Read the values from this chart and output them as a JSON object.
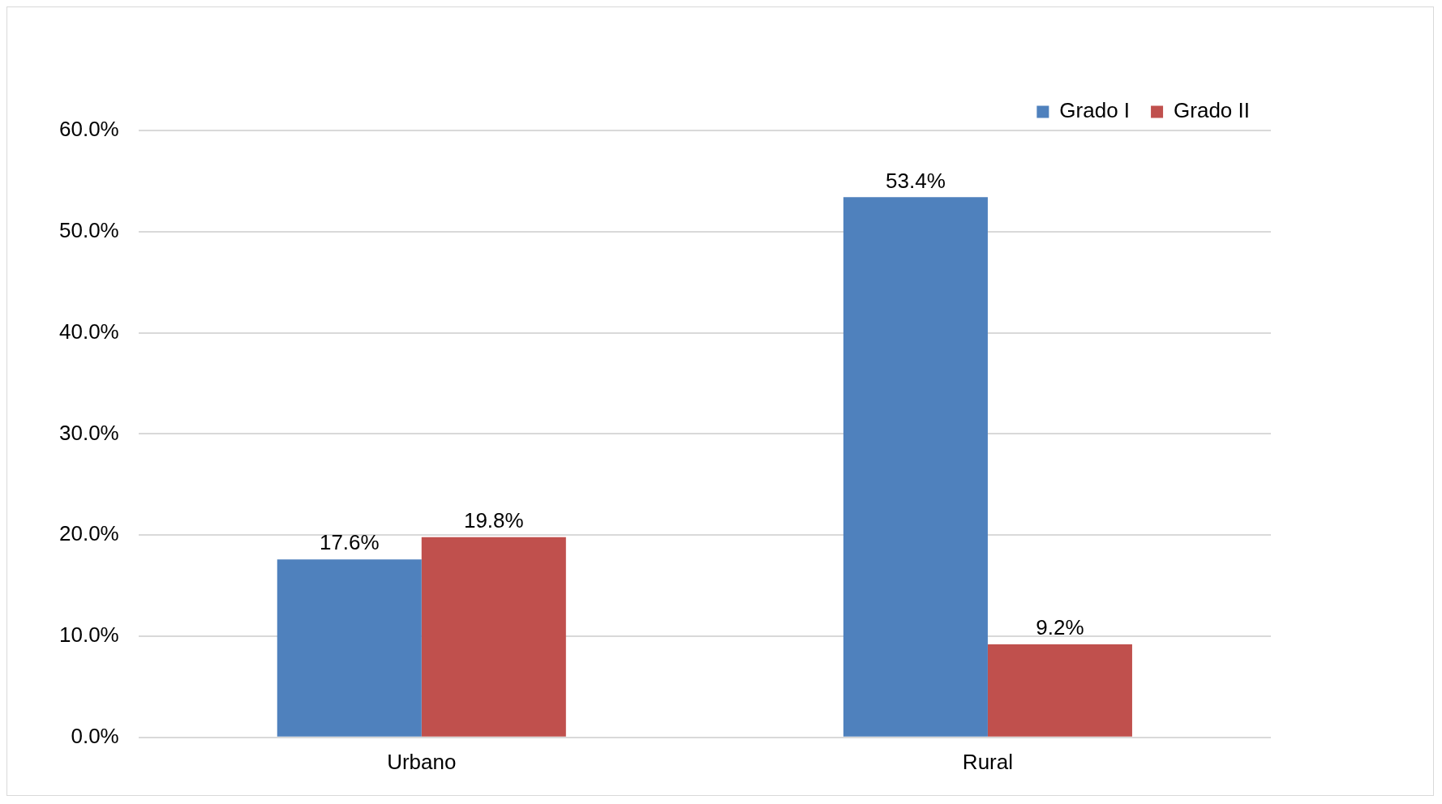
{
  "chart_data": {
    "type": "bar",
    "categories": [
      "Urbano",
      "Rural"
    ],
    "series": [
      {
        "name": "Grado I",
        "color": "#4f81bd",
        "values": [
          17.6,
          53.4
        ],
        "value_labels": [
          "17.6%",
          "53.4%"
        ]
      },
      {
        "name": "Grado II",
        "color": "#c0504d",
        "values": [
          19.8,
          9.2
        ],
        "value_labels": [
          "19.8%",
          "9.2%"
        ]
      }
    ],
    "ylim": [
      0,
      60
    ],
    "yticks": [
      {
        "value": 0,
        "label": "0.0%"
      },
      {
        "value": 10,
        "label": "10.0%"
      },
      {
        "value": 20,
        "label": "20.0%"
      },
      {
        "value": 30,
        "label": "30.0%"
      },
      {
        "value": 40,
        "label": "40.0%"
      },
      {
        "value": 50,
        "label": "50.0%"
      },
      {
        "value": 60,
        "label": "60.0%"
      }
    ],
    "grid": "y",
    "legend": "top right"
  }
}
